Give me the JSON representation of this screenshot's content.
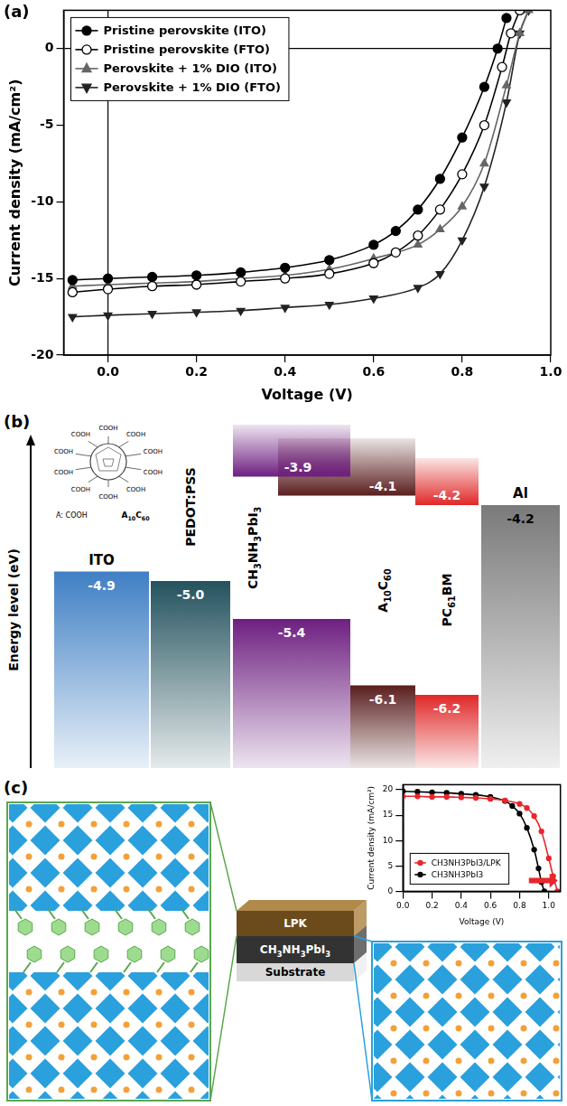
{
  "panels": [
    "(a)",
    "(b)",
    "(c)"
  ],
  "chart_data": [
    {
      "type": "line",
      "x_label": "Voltage (V)",
      "y_label": "Current density (mA/cm²)",
      "xlim": [
        -0.1,
        1.0
      ],
      "ylim": [
        -20,
        2.5
      ],
      "xticks": [
        {
          "value": 0,
          "label": "0.0"
        },
        {
          "value": 0.2,
          "label": "0.2"
        },
        {
          "value": 0.4,
          "label": "0.4"
        },
        {
          "value": 0.6,
          "label": "0.6"
        },
        {
          "value": 0.8,
          "label": "0.8"
        },
        {
          "value": 1.0,
          "label": "1.0"
        }
      ],
      "yticks": [
        -20,
        -15,
        -10,
        -5,
        0
      ],
      "grid": false,
      "legend": "upper left",
      "series": [
        {
          "name": "Pristine perovskite (ITO)",
          "color": "#000000",
          "marker": "circle",
          "x": [
            -0.08,
            0,
            0.1,
            0.2,
            0.3,
            0.4,
            0.5,
            0.6,
            0.65,
            0.7,
            0.75,
            0.8,
            0.85,
            0.88,
            0.9
          ],
          "values": [
            -15.1,
            -15.0,
            -14.9,
            -14.8,
            -14.6,
            -14.3,
            -13.8,
            -12.8,
            -11.9,
            -10.5,
            -8.5,
            -5.8,
            -2.5,
            0,
            2.0
          ]
        },
        {
          "name": "Pristine perovskite (FTO)",
          "color": "#000000",
          "marker": "open_circle",
          "x": [
            -0.08,
            0,
            0.1,
            0.2,
            0.3,
            0.4,
            0.5,
            0.6,
            0.65,
            0.7,
            0.75,
            0.8,
            0.85,
            0.89,
            0.91,
            0.93
          ],
          "values": [
            -15.9,
            -15.7,
            -15.5,
            -15.4,
            -15.2,
            -15.0,
            -14.7,
            -14.0,
            -13.3,
            -12.2,
            -10.5,
            -8.2,
            -5.0,
            -1.2,
            1.0,
            2.5
          ]
        },
        {
          "name": "Perovskite + 1% DIO (ITO)",
          "color": "#666666",
          "marker": "triangle",
          "x": [
            -0.08,
            0,
            0.1,
            0.2,
            0.3,
            0.4,
            0.5,
            0.6,
            0.7,
            0.75,
            0.8,
            0.85,
            0.9,
            0.93,
            0.95
          ],
          "values": [
            -15.5,
            -15.4,
            -15.3,
            -15.2,
            -15.0,
            -14.8,
            -14.4,
            -13.7,
            -12.8,
            -11.8,
            -10.3,
            -7.5,
            -2.4,
            1.0,
            2.5
          ]
        },
        {
          "name": "Perovskite + 1% DIO (FTO)",
          "color": "#222222",
          "marker": "triangle_down",
          "x": [
            -0.08,
            0,
            0.1,
            0.2,
            0.3,
            0.4,
            0.5,
            0.6,
            0.7,
            0.75,
            0.8,
            0.85,
            0.9,
            0.93,
            0.95
          ],
          "values": [
            -17.5,
            -17.4,
            -17.3,
            -17.2,
            -17.1,
            -16.9,
            -16.7,
            -16.3,
            -15.6,
            -14.7,
            -12.5,
            -9.0,
            -3.5,
            1.0,
            2.5
          ]
        }
      ]
    },
    {
      "type": "line",
      "x_label": "Voltage (V)",
      "y_label": "Current density (mA/cm²)",
      "xlim": [
        0,
        1.08
      ],
      "ylim": [
        0,
        21
      ],
      "xticks": [
        {
          "value": 0,
          "label": "0.0"
        },
        {
          "value": 0.2,
          "label": "0.2"
        },
        {
          "value": 0.4,
          "label": "0.4"
        },
        {
          "value": 0.6,
          "label": "0.6"
        },
        {
          "value": 0.8,
          "label": "0.8"
        },
        {
          "value": 1.0,
          "label": "1.0"
        }
      ],
      "yticks": [
        0,
        5,
        10,
        15,
        20
      ],
      "grid": false,
      "legend": "lower left",
      "series": [
        {
          "name": "CH3NH3PbI3/LPK",
          "color": "#e8262b",
          "marker": "circle",
          "x": [
            0,
            0.1,
            0.2,
            0.3,
            0.4,
            0.5,
            0.6,
            0.7,
            0.8,
            0.85,
            0.9,
            0.95,
            1.0,
            1.03,
            1.06
          ],
          "values": [
            18.7,
            18.7,
            18.6,
            18.6,
            18.5,
            18.4,
            18.2,
            17.9,
            17.2,
            16.4,
            14.8,
            11.8,
            6.5,
            3.0,
            0
          ]
        },
        {
          "name": "CH3NH3PbI3",
          "color": "#000000",
          "marker": "circle",
          "x": [
            0,
            0.1,
            0.2,
            0.3,
            0.4,
            0.5,
            0.6,
            0.7,
            0.75,
            0.8,
            0.85,
            0.9,
            0.93,
            0.95,
            0.97
          ],
          "values": [
            19.7,
            19.6,
            19.5,
            19.4,
            19.2,
            19.0,
            18.6,
            17.8,
            16.8,
            15.3,
            12.5,
            8.2,
            4.5,
            1.8,
            0
          ]
        }
      ]
    }
  ],
  "energy_diagram": {
    "axis_label": "Energy level (eV)",
    "molecule": {
      "name": "A10C60",
      "key": "A:",
      "key_group": "COOH",
      "substituents": [
        "COOH",
        "COOH",
        "COOH",
        "COOH",
        "COOH",
        "COOH",
        "COOH",
        "COOH",
        "COOH",
        "COOH"
      ]
    },
    "layers": [
      {
        "name": "ITO",
        "color": "#3f7fc4",
        "levels": [
          {
            "value": -4.9,
            "label": "-4.9"
          }
        ]
      },
      {
        "name": "PEDOT:PSS",
        "color": "#24525e",
        "levels": [
          {
            "value": -5.0,
            "label": "-5.0"
          }
        ]
      },
      {
        "name": "CH3NH3PbI3",
        "color": "#6e1f80",
        "levels": [
          {
            "value": -3.9,
            "label": "-3.9"
          },
          {
            "value": -5.4,
            "label": "-5.4"
          }
        ]
      },
      {
        "name": "A10C60",
        "color": "#5a1e1e",
        "levels": [
          {
            "value": -4.1,
            "label": "-4.1"
          },
          {
            "value": -6.1,
            "label": "-6.1"
          }
        ]
      },
      {
        "name": "PC61BM",
        "color": "#e02828",
        "levels": [
          {
            "value": -4.2,
            "label": "-4.2"
          },
          {
            "value": -6.2,
            "label": "-6.2"
          }
        ]
      },
      {
        "name": "Al",
        "color": "#7a7a7a",
        "levels": [
          {
            "value": -4.2,
            "label": "-4.2"
          }
        ]
      }
    ]
  },
  "schematic": {
    "layers": [
      "LPK",
      "CH3NH3PbI3",
      "Substrate"
    ]
  }
}
